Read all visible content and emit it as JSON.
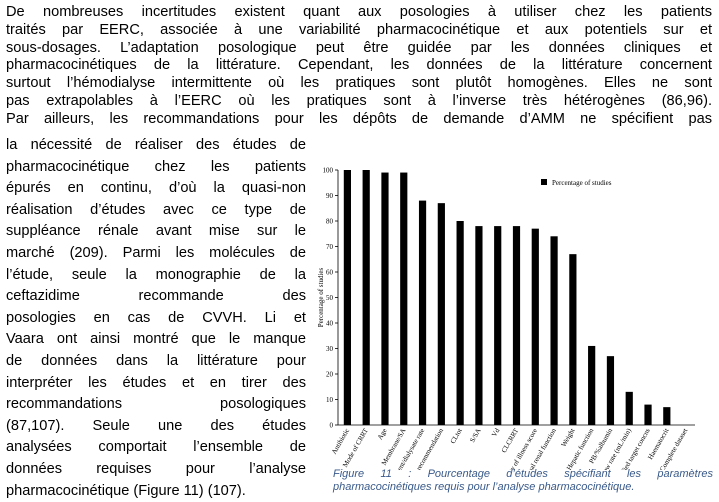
{
  "document": {
    "full_lines": [
      "De nombreuses incertitudes existent quant aux posologies à utiliser chez les patients",
      "traités par EERC, associée à une variabilité pharmacocinétique et aux potentiels sur et",
      "sous-dosages. L’adaptation posologique peut être guidée par les données cliniques et",
      "pharmacocinétiques de la littérature. Cependant, les données de la littérature concernent",
      "surtout l’hémodialyse intermittente où les pratiques sont plutôt homogènes. Elles ne sont",
      "pas extrapolables à l’EERC où les pratiques sont à l’inverse très hétérogènes (86,96).",
      "Par ailleurs, les recommandations pour les dépôts de demande d’AMM ne spécifient pas"
    ],
    "column_lines": [
      "la nécessité de réaliser des études de",
      "pharmacocinétique chez les patients",
      "épurés en continu, d’où la quasi-non",
      "réalisation d’études avec ce type de",
      "suppléance rénale avant mise sur le",
      "marché (209). Parmi les molécules de",
      "l’étude, seule la monographie de la",
      "ceftazidime recommande des",
      "posologies en cas de CVVH. Li et",
      "Vaara ont ainsi montré que le manque",
      "de données dans la littérature pour",
      "interpréter les études et en tirer des",
      "recommandations posologiques",
      "(87,107). Seule une des études",
      "analysées comportait l’ensemble de",
      "données requises pour l’analyse",
      "pharmacocinétique (Figure 11) (107)."
    ],
    "caption": "Figure 11 : Pourcentage d’études spécifiant les paramètres pharmacocinétiques requis pour l’analyse pharmacocinétique."
  },
  "chart_data": {
    "type": "bar",
    "ylabel": "Percentage of studies",
    "categories": [
      "Antibiotic",
      "Mode of CRRT",
      "Age",
      "Membrane/SA",
      "UF/effluent/dialysate rate",
      "Dose recommendation",
      "CLtot",
      "S/SA",
      "Vd",
      "CLCRRT",
      "Severity of illness score",
      "Residual renal function",
      "Weight",
      "Hepatic function",
      "PB/%albumin",
      "Blood flow rate (mL/min)",
      "Specified target concns",
      "Haematocrit",
      "Complete dataset"
    ],
    "series": [
      {
        "name": "Percentage of studies",
        "color": "#000000",
        "values": [
          100,
          100,
          99,
          99,
          88,
          87,
          80,
          78,
          78,
          78,
          77,
          74,
          67,
          31,
          27,
          13,
          8,
          7,
          0
        ]
      }
    ],
    "ylim": [
      0,
      100
    ],
    "yticks": [
      0,
      10,
      20,
      30,
      40,
      50,
      60,
      70,
      80,
      90,
      100
    ],
    "grid": false,
    "legend": "top-right"
  }
}
